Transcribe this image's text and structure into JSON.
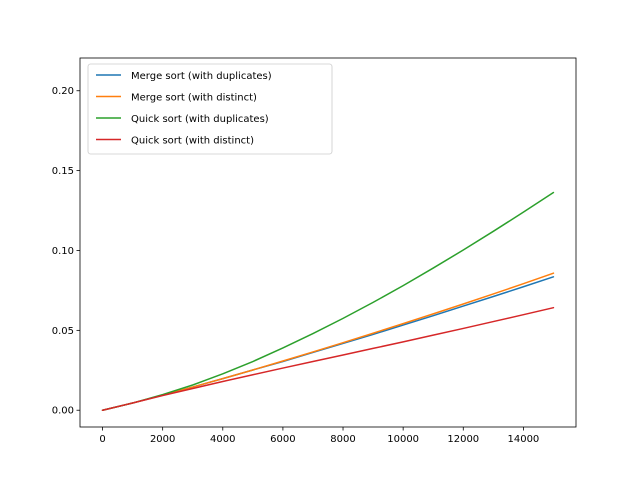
{
  "chart_data": {
    "type": "line",
    "title": "",
    "xlabel": "",
    "ylabel": "",
    "xlim": [
      -750,
      15750
    ],
    "ylim": [
      -0.0105,
      0.2205
    ],
    "xticks": [
      0,
      2000,
      4000,
      6000,
      8000,
      10000,
      12000,
      14000
    ],
    "yticks": [
      0.0,
      0.05,
      0.1,
      0.15,
      0.2
    ],
    "xtick_labels": [
      "0",
      "2000",
      "4000",
      "6000",
      "8000",
      "10000",
      "12000",
      "14000"
    ],
    "ytick_labels": [
      "0.00",
      "0.05",
      "0.10",
      "0.15",
      "0.20"
    ],
    "grid": false,
    "legend_position": "top-left",
    "x": [
      0,
      1000,
      2000,
      3000,
      4000,
      5000,
      6000,
      7000,
      8000,
      9000,
      10000,
      11000,
      12000,
      13000,
      14000,
      15000
    ],
    "series": [
      {
        "name": "Merge sort (with duplicates)",
        "color": "#1f77b4",
        "values": [
          0.0,
          0.0045,
          0.0095,
          0.0145,
          0.0198,
          0.0252,
          0.0305,
          0.0362,
          0.0418,
          0.0475,
          0.0533,
          0.0592,
          0.0652,
          0.0712,
          0.0773,
          0.0835
        ]
      },
      {
        "name": "Merge sort (with distinct)",
        "color": "#ff7f0e",
        "values": [
          0.0,
          0.0045,
          0.0095,
          0.0145,
          0.0198,
          0.0252,
          0.0308,
          0.0365,
          0.0423,
          0.0482,
          0.0542,
          0.0603,
          0.0665,
          0.0728,
          0.0792,
          0.0858
        ]
      },
      {
        "name": "Quick sort (with duplicates)",
        "color": "#2ca02c",
        "values": [
          0.0,
          0.0045,
          0.0098,
          0.0158,
          0.0228,
          0.0305,
          0.039,
          0.048,
          0.0575,
          0.0675,
          0.078,
          0.089,
          0.1003,
          0.112,
          0.124,
          0.1363
        ]
      },
      {
        "name": "Quick sort (with distinct)",
        "color": "#d62728",
        "values": [
          0.0,
          0.0045,
          0.0092,
          0.0136,
          0.018,
          0.0222,
          0.0264,
          0.0305,
          0.0346,
          0.0387,
          0.0428,
          0.047,
          0.0512,
          0.0555,
          0.0598,
          0.0642
        ]
      }
    ]
  }
}
